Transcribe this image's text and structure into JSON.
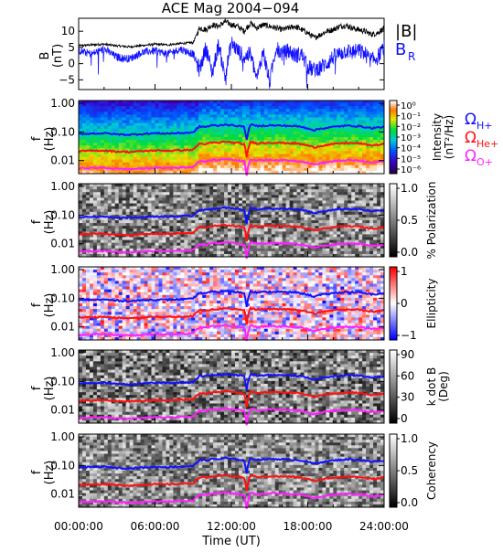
{
  "title": "ACE Mag 2004−094",
  "colors": {
    "black": "#000000",
    "blue": "#1010ff",
    "red": "#ff1010",
    "magenta": "#ff20ff",
    "bg": "#ffffff"
  },
  "time_axis": {
    "label": "Time (UT)",
    "ticks": [
      "00:00:00",
      "06:00:00",
      "12:00:00",
      "18:00:00",
      "24:00:00"
    ],
    "range_hours": [
      0,
      24
    ]
  },
  "chart_data": [
    {
      "type": "line",
      "ylabel": "B\n(nT)",
      "ylim": [
        -8,
        14
      ],
      "yticks": [
        -5,
        0,
        5,
        10
      ],
      "legend": [
        {
          "label": "|B|",
          "color": "#000000"
        },
        {
          "label": "B",
          "sub": "R",
          "color": "#1010ff"
        }
      ],
      "x": [
        0,
        1,
        2,
        3,
        4,
        5,
        6,
        7,
        8,
        9,
        9.5,
        10,
        10.5,
        11,
        11.5,
        12,
        12.5,
        13,
        13.5,
        14,
        14.5,
        15,
        15.5,
        16,
        16.5,
        17,
        17.5,
        18,
        18.5,
        19,
        19.5,
        20,
        20.5,
        21,
        21.5,
        22,
        22.5,
        23,
        23.5,
        24
      ],
      "series": [
        {
          "name": "|B|",
          "values": [
            5.5,
            5.8,
            6.0,
            5.5,
            5.2,
            5.6,
            6.0,
            5.8,
            6.2,
            6.5,
            11.0,
            10.5,
            12.0,
            11.5,
            13.0,
            12.0,
            11.5,
            10.0,
            12.5,
            11.0,
            12.0,
            11.5,
            11.0,
            10.5,
            11.0,
            11.5,
            10.5,
            9.5,
            8.0,
            9.0,
            10.0,
            10.5,
            11.5,
            11.8,
            11.0,
            10.5,
            10.0,
            9.0,
            9.5,
            11.0
          ]
        },
        {
          "name": "B_R",
          "values": [
            4.0,
            3.0,
            4.5,
            2.0,
            1.5,
            3.5,
            4.0,
            3.0,
            4.5,
            3.0,
            -2.0,
            5.0,
            -3.0,
            6.0,
            -4.0,
            6.5,
            4.0,
            2.0,
            3.0,
            -5.0,
            4.0,
            -6.0,
            5.0,
            3.0,
            4.0,
            2.5,
            3.0,
            -1.0,
            -2.0,
            -1.0,
            0.0,
            2.0,
            3.0,
            4.0,
            3.5,
            4.0,
            3.0,
            1.0,
            2.0,
            5.0
          ]
        }
      ]
    },
    {
      "type": "heatmap",
      "panel": "intensity",
      "ylabel": "f\n(Hz)",
      "yticks": [
        "1.00",
        "0.10",
        "0.01"
      ],
      "colorbar": {
        "label": "Intensity\n(nT²/Hz)",
        "ticks": [
          "10⁰",
          "10⁻¹",
          "10⁻²",
          "10⁻³",
          "10⁻⁴",
          "10⁻⁵",
          "10⁻⁶"
        ]
      },
      "legend": [
        {
          "label": "Ω",
          "sub": "H+",
          "color": "#1010ff"
        },
        {
          "label": "Ω",
          "sub": "He+",
          "color": "#ff1010"
        },
        {
          "label": "Ω",
          "sub": "O+",
          "color": "#ff20ff"
        }
      ]
    },
    {
      "type": "heatmap",
      "panel": "polarization",
      "ylabel": "f\n(Hz)",
      "yticks": [
        "1.00",
        "0.10",
        "0.01"
      ],
      "colorbar": {
        "label": "% Polarization",
        "ticks": [
          "1.0",
          "0.5",
          "0.0"
        ]
      }
    },
    {
      "type": "heatmap",
      "panel": "ellipticity",
      "ylabel": "f\n(Hz)",
      "yticks": [
        "1.00",
        "0.10",
        "0.01"
      ],
      "colorbar": {
        "label": "Ellipticity",
        "ticks": [
          "1",
          "0",
          "−1"
        ]
      }
    },
    {
      "type": "heatmap",
      "panel": "kdotb",
      "ylabel": "f\n(Hz)",
      "yticks": [
        "1.00",
        "0.10",
        "0.01"
      ],
      "colorbar": {
        "label": "k dot B\n(Deg)",
        "ticks": [
          "90",
          "60",
          "30",
          "0"
        ]
      }
    },
    {
      "type": "heatmap",
      "panel": "coherency",
      "ylabel": "f\n(Hz)",
      "yticks": [
        "1.00",
        "0.10",
        "0.01"
      ],
      "colorbar": {
        "label": "Coherency",
        "ticks": [
          "1.0",
          "0.5",
          "0.0"
        ]
      }
    }
  ],
  "gyrofrequency": {
    "x": [
      0,
      1,
      2,
      3,
      4,
      5,
      6,
      7,
      8,
      9,
      9.5,
      10,
      10.5,
      11,
      11.5,
      12,
      12.5,
      13,
      13.2,
      13.5,
      14,
      15,
      16,
      17,
      17.5,
      18,
      18.5,
      19,
      20,
      21,
      22,
      23,
      24
    ],
    "H_plus": [
      0.085,
      0.088,
      0.09,
      0.083,
      0.08,
      0.085,
      0.09,
      0.088,
      0.092,
      0.095,
      0.155,
      0.15,
      0.17,
      0.165,
      0.185,
      0.17,
      0.165,
      0.15,
      0.05,
      0.18,
      0.16,
      0.17,
      0.165,
      0.16,
      0.15,
      0.135,
      0.115,
      0.13,
      0.15,
      0.165,
      0.16,
      0.135,
      0.15
    ]
  }
}
